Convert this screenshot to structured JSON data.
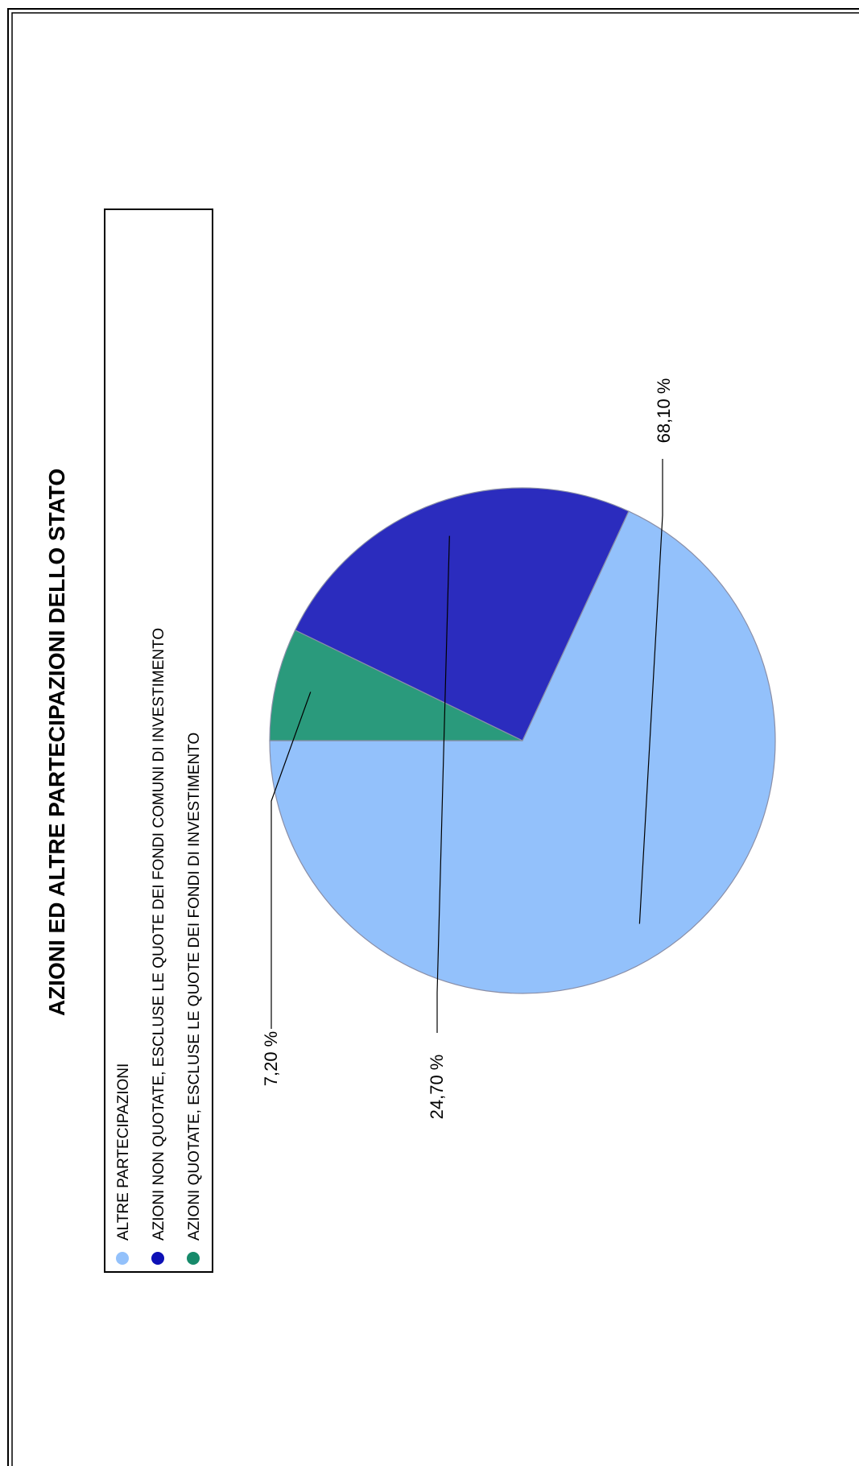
{
  "chart_data": {
    "type": "pie",
    "title": "AZIONI ED ALTRE PARTECIPAZIONI DELLO STATO",
    "orientation": "rotated-90-ccw",
    "legend_position": "left",
    "slices": [
      {
        "label": "ALTRE PARTECIPAZIONI",
        "value": 68.1,
        "display": "68,10 %",
        "color": "#93c1fb"
      },
      {
        "label": "AZIONI NON QUOTATE, ESCLUSE LE QUOTE DEI FONDI COMUNI DI INVESTIMENTO",
        "value": 24.7,
        "display": "24,70 %",
        "color": "#2b2cbe"
      },
      {
        "label": "AZIONI QUOTATE, ESCLUSE LE QUOTE DEI FONDI  DI INVESTIMENTO",
        "value": 7.2,
        "display": "7,20 %",
        "color": "#2a9a7c"
      }
    ],
    "legend_marker_colors": [
      "#93c1fb",
      "#0d10b6",
      "#168a6a"
    ]
  }
}
